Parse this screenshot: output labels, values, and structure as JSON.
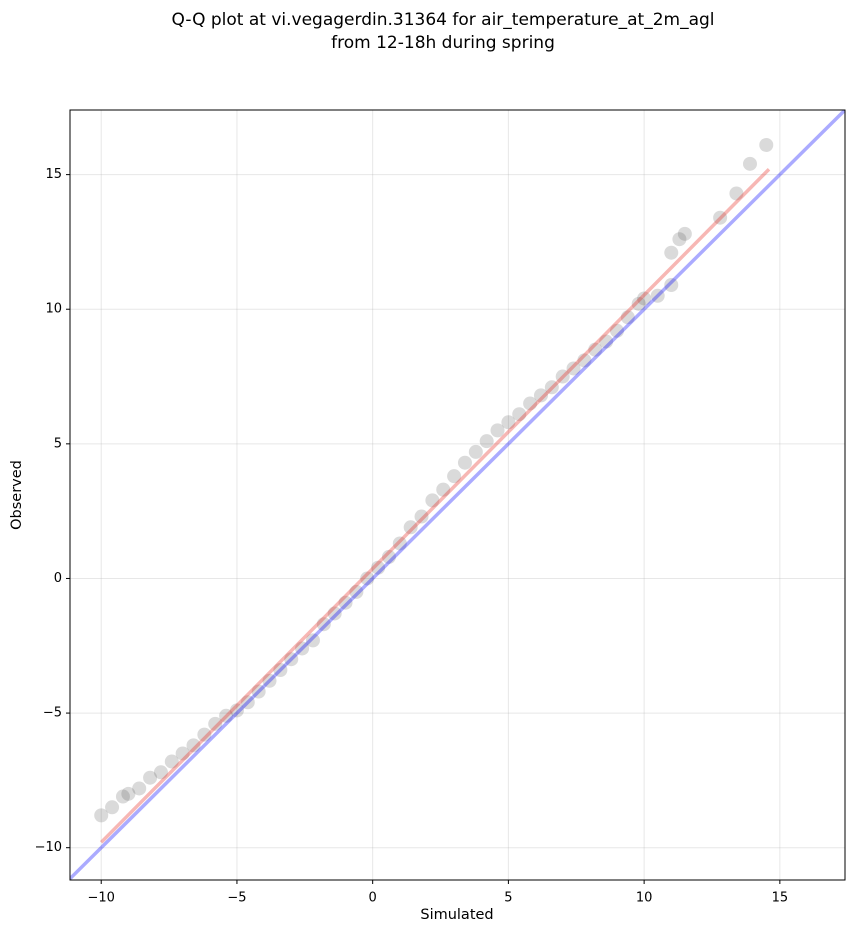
{
  "chart_data": {
    "type": "scatter",
    "title": [
      "Q-Q plot at vi.vegagerdin.31364 for air_temperature_at_2m_agl",
      "from 12-18h during spring"
    ],
    "x_label": "Simulated",
    "y_label": "Observed",
    "xlim": [
      -11.15,
      17.4
    ],
    "ylim": [
      -11.2,
      17.4
    ],
    "xticks": [
      {
        "value": -10,
        "label": "−10"
      },
      {
        "value": -5,
        "label": "−5"
      },
      0,
      5,
      10,
      15
    ],
    "yticks": [
      {
        "value": -10,
        "label": "−10"
      },
      {
        "value": -5,
        "label": "−5"
      },
      0,
      5,
      10,
      15
    ],
    "grid": true,
    "points": {
      "color": "#444444",
      "x": [
        -10,
        -9.6,
        -9.2,
        -9.0,
        -8.6,
        -8.2,
        -7.8,
        -7.4,
        -7.0,
        -6.6,
        -6.2,
        -5.8,
        -5.4,
        -5.0,
        -4.6,
        -4.2,
        -3.8,
        -3.4,
        -3.0,
        -2.6,
        -2.2,
        -1.8,
        -1.4,
        -1.0,
        -0.6,
        -0.2,
        0.2,
        0.6,
        1.0,
        1.4,
        1.8,
        2.2,
        2.6,
        3.0,
        3.4,
        3.8,
        4.2,
        4.6,
        5.0,
        5.4,
        5.8,
        6.2,
        6.6,
        7.0,
        7.4,
        7.8,
        8.2,
        8.6,
        9.0,
        9.4,
        9.8,
        10.0,
        10.5,
        11.0,
        11.0,
        11.3,
        11.5,
        12.8,
        13.4,
        13.9,
        14.5
      ],
      "y": [
        -8.8,
        -8.5,
        -8.1,
        -8.0,
        -7.8,
        -7.4,
        -7.2,
        -6.8,
        -6.5,
        -6.2,
        -5.8,
        -5.4,
        -5.1,
        -4.9,
        -4.6,
        -4.2,
        -3.8,
        -3.4,
        -3.0,
        -2.6,
        -2.3,
        -1.7,
        -1.3,
        -0.9,
        -0.5,
        0.0,
        0.4,
        0.8,
        1.3,
        1.9,
        2.3,
        2.9,
        3.3,
        3.8,
        4.3,
        4.7,
        5.1,
        5.5,
        5.8,
        6.1,
        6.5,
        6.8,
        7.1,
        7.5,
        7.8,
        8.1,
        8.5,
        8.8,
        9.2,
        9.7,
        10.2,
        10.4,
        10.5,
        10.9,
        12.1,
        12.6,
        12.8,
        13.4,
        14.3,
        15.4,
        16.1
      ]
    },
    "lines": [
      {
        "color": "#0000ff",
        "x": [
          -11.15,
          17.4
        ],
        "y": [
          -11.15,
          17.4
        ]
      },
      {
        "color": "#e8241c",
        "x": [
          -10,
          14.6
        ],
        "y": [
          -9.8,
          15.2
        ]
      }
    ]
  }
}
